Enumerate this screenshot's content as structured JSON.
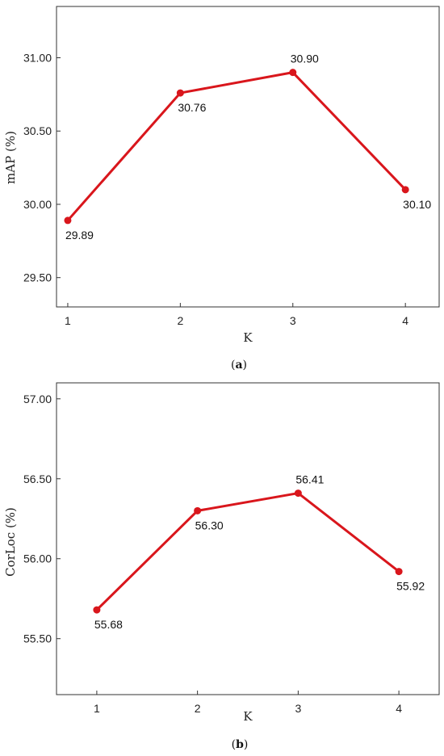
{
  "chart_data": [
    {
      "type": "line",
      "x": [
        1,
        2,
        3,
        4
      ],
      "xticks": [
        "1",
        "2",
        "3",
        "4"
      ],
      "values": [
        29.89,
        30.76,
        30.9,
        30.1
      ],
      "data_labels": [
        "29.89",
        "30.76",
        "30.90",
        "30.10"
      ],
      "label_positions": [
        "below",
        "below",
        "above",
        "below"
      ],
      "yticks": [
        "29.50",
        "30.00",
        "30.50",
        "31.00"
      ],
      "ytick_values": [
        29.5,
        30.0,
        30.5,
        31.0
      ],
      "xlim": [
        0.9,
        4.3
      ],
      "ylim": [
        29.3,
        31.35
      ],
      "xlabel": "K",
      "ylabel": "mAP (%)",
      "caption_letter": "a",
      "line_color": "#d9161c",
      "grid": false
    },
    {
      "type": "line",
      "x": [
        1,
        2,
        3,
        4
      ],
      "xticks": [
        "1",
        "2",
        "3",
        "4"
      ],
      "values": [
        55.68,
        56.3,
        56.41,
        55.92
      ],
      "data_labels": [
        "55.68",
        "56.30",
        "56.41",
        "55.92"
      ],
      "label_positions": [
        "below",
        "below",
        "above",
        "below"
      ],
      "yticks": [
        "55.50",
        "56.00",
        "56.50",
        "57.00"
      ],
      "ytick_values": [
        55.5,
        56.0,
        56.5,
        57.0
      ],
      "xlim": [
        0.6,
        4.4
      ],
      "ylim": [
        55.15,
        57.1
      ],
      "xlabel": "K",
      "ylabel": "CorLoc (%)",
      "caption_letter": "b",
      "line_color": "#d9161c",
      "grid": false
    }
  ]
}
